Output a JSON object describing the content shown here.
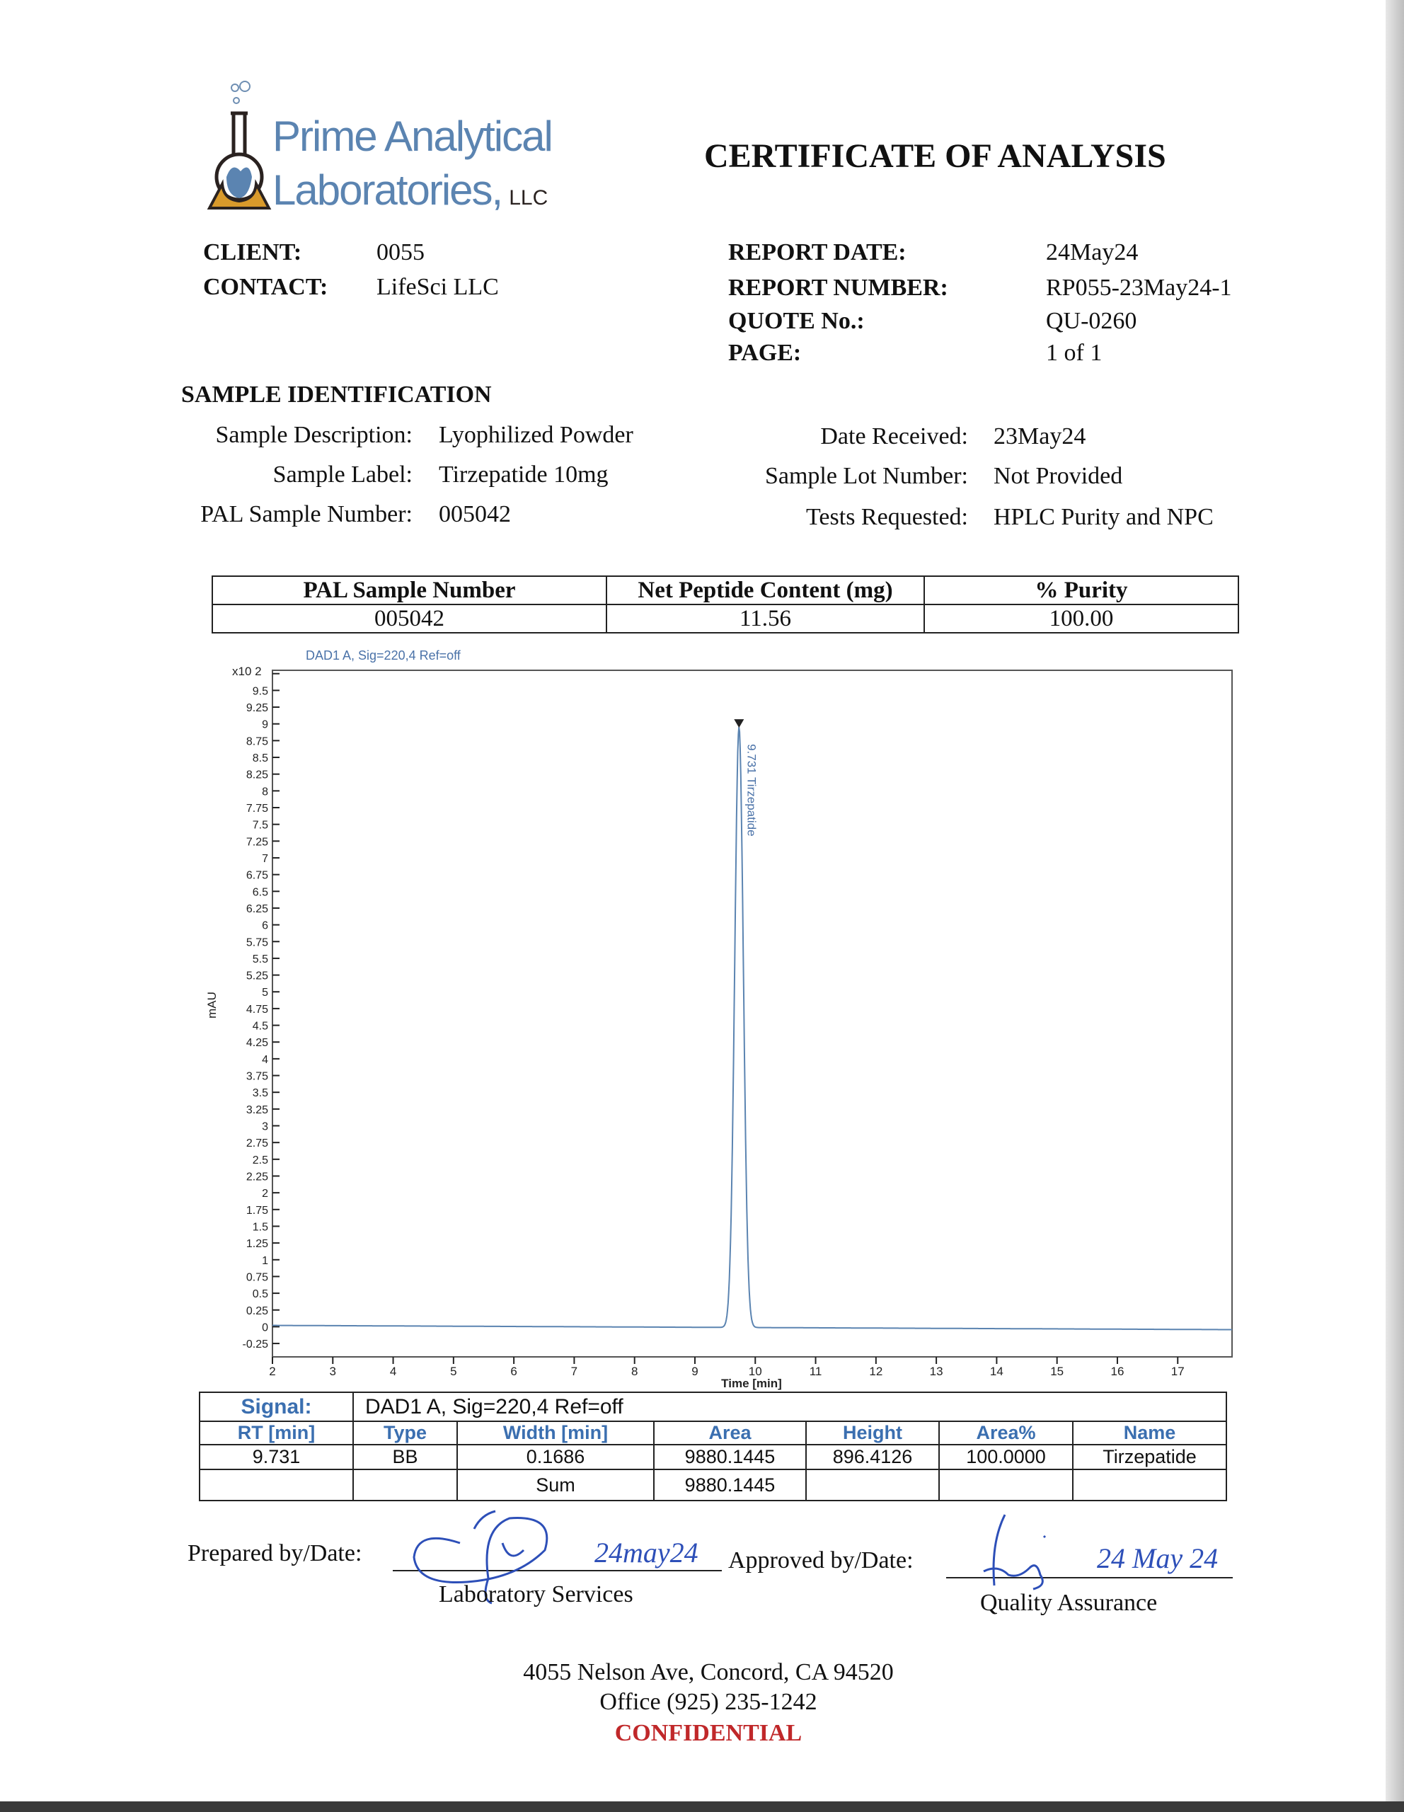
{
  "logo": {
    "line1": "Prime Analytical",
    "line2": "Laboratories,",
    "suffix": "LLC",
    "colors": {
      "blue": "#5b84b1",
      "dark": "#2a2220",
      "orange": "#d99a2b"
    }
  },
  "title": "CERTIFICATE OF ANALYSIS",
  "client": {
    "client_label": "CLIENT:",
    "client_value": "0055",
    "contact_label": "CONTACT:",
    "contact_value": "LifeSci LLC"
  },
  "report": [
    {
      "label": "REPORT DATE:",
      "value": "24May24"
    },
    {
      "label": "REPORT NUMBER:",
      "value": "RP055-23May24-1"
    },
    {
      "label": "QUOTE No.:",
      "value": "QU-0260"
    },
    {
      "label": "PAGE:",
      "value": "1 of 1"
    }
  ],
  "sample": {
    "heading": "SAMPLE IDENTIFICATION",
    "left": [
      {
        "label": "Sample Description:",
        "value": "Lyophilized Powder"
      },
      {
        "label": "Sample Label:",
        "value": "Tirzepatide 10mg"
      },
      {
        "label": "PAL Sample Number:",
        "value": "005042"
      }
    ],
    "right": [
      {
        "label": "Date Received:",
        "value": "23May24"
      },
      {
        "label": "Sample Lot Number:",
        "value": "Not Provided"
      },
      {
        "label": "Tests Requested:",
        "value": "HPLC Purity and NPC"
      }
    ]
  },
  "results": {
    "headers": [
      "PAL Sample Number",
      "Net Peptide Content (mg)",
      "% Purity"
    ],
    "row": [
      "005042",
      "11.56",
      "100.00"
    ]
  },
  "chart_data": {
    "type": "line",
    "title": "DAD1 A, Sig=220,4 Ref=off",
    "xlabel": "Time [min]",
    "ylabel": "mAU",
    "y_multiplier": "x10 2",
    "xlim": [
      2,
      17.9
    ],
    "ylim": [
      -0.45,
      9.8
    ],
    "xticks": [
      2,
      3,
      4,
      5,
      6,
      7,
      8,
      9,
      10,
      11,
      12,
      13,
      14,
      15,
      16,
      17
    ],
    "yticks": [
      "9.5",
      "9.25",
      "9",
      "8.75",
      "8.5",
      "8.25",
      "8",
      "7.75",
      "7.5",
      "7.25",
      "7",
      "6.75",
      "6.5",
      "6.25",
      "6",
      "5.75",
      "5.5",
      "5.25",
      "5",
      "4.75",
      "4.5",
      "4.25",
      "4",
      "3.75",
      "3.5",
      "3.25",
      "3",
      "2.75",
      "2.5",
      "2.25",
      "2",
      "1.75",
      "1.5",
      "1.25",
      "1",
      "0.75",
      "0.5",
      "0.25",
      "0",
      "-0.25"
    ],
    "peaks": [
      {
        "rt": 9.731,
        "height": 8.964,
        "width": 0.1686,
        "label": "9.731 Tirzepatide"
      }
    ],
    "grid": false,
    "line_color": "#5b84b1"
  },
  "peak_table": {
    "signal_label": "Signal:",
    "signal_value": "DAD1 A, Sig=220,4 Ref=off",
    "headers": [
      "RT [min]",
      "Type",
      "Width [min]",
      "Area",
      "Height",
      "Area%",
      "Name"
    ],
    "row": [
      "9.731",
      "BB",
      "0.1686",
      "9880.1445",
      "896.4126",
      "100.0000",
      "Tirzepatide"
    ],
    "sum_label": "Sum",
    "sum_value": "9880.1445"
  },
  "signoff": {
    "prepared_label": "Prepared by/Date:",
    "prepared_date": "24may24",
    "prepared_role": "Laboratory Services",
    "approved_label": "Approved by/Date:",
    "approved_date": "24 May 24",
    "approved_role": "Quality Assurance"
  },
  "footer": {
    "address": "4055 Nelson Ave, Concord, CA 94520",
    "phone": "Office (925) 235-1242",
    "confidential": "CONFIDENTIAL",
    "confidential_color": "#c0282a"
  }
}
